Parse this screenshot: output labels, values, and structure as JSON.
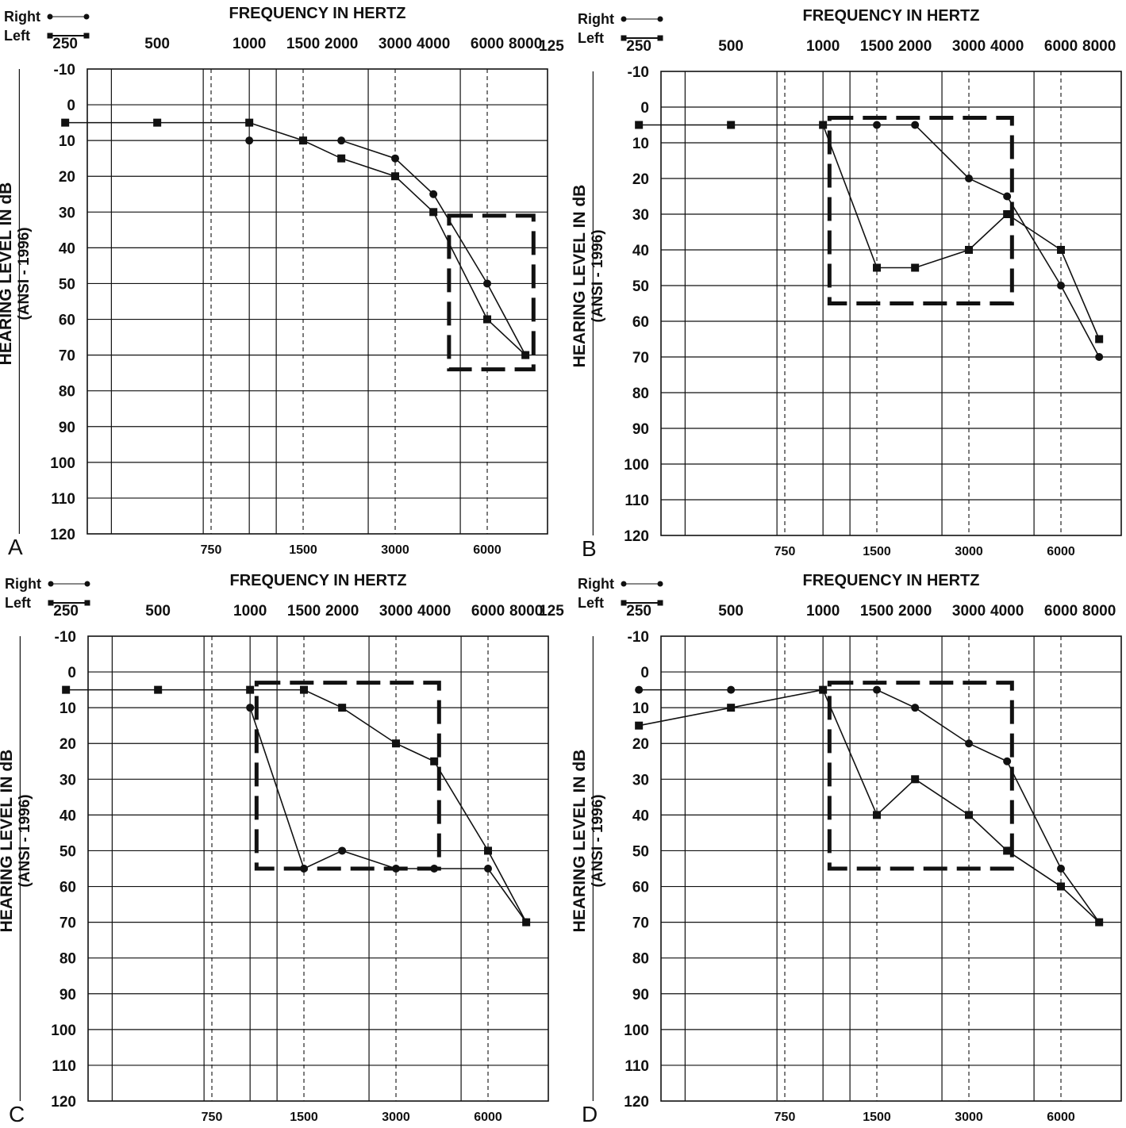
{
  "chart_data": [
    {
      "type": "line",
      "panel_label": "A",
      "title": "FREQUENCY IN HERTZ",
      "ylabel": "HEARING LEVEL IN dB",
      "ylabel_sub": "(ANSI - 1996)",
      "ylim": [
        -10,
        120
      ],
      "y_ticks": [
        "-10",
        "0",
        "10",
        "20",
        "30",
        "40",
        "50",
        "60",
        "70",
        "80",
        "90",
        "100",
        "110",
        "120"
      ],
      "x_top_ticks": [
        "125",
        "250",
        "500",
        "1000",
        "1500",
        "2000",
        "3000",
        "4000",
        "6000",
        "8000"
      ],
      "x_bottom_ticks": [
        "750",
        "1500",
        "3000",
        "6000"
      ],
      "legend": [
        {
          "name": "Right",
          "marker": "circle"
        },
        {
          "name": "Left",
          "marker": "square"
        }
      ],
      "series": [
        {
          "name": "Right",
          "marker": "circle",
          "x": [
            1000,
            1500,
            2000,
            3000,
            4000,
            6000,
            8000
          ],
          "y": [
            10,
            10,
            10,
            15,
            25,
            50,
            70
          ]
        },
        {
          "name": "Left",
          "marker": "square",
          "x": [
            250,
            500,
            1000,
            1500,
            2000,
            3000,
            4000,
            6000,
            8000
          ],
          "y": [
            5,
            5,
            5,
            10,
            15,
            20,
            30,
            60,
            70
          ]
        }
      ],
      "highlight_box": {
        "x_from": 4500,
        "x_to": 8500,
        "y_from": 31,
        "y_to": 74
      }
    },
    {
      "type": "line",
      "panel_label": "B",
      "title": "FREQUENCY IN HERTZ",
      "ylabel": "HEARING LEVEL IN dB",
      "ylabel_sub": "(ANSI - 1996)",
      "ylim": [
        -10,
        120
      ],
      "y_ticks": [
        "-10",
        "0",
        "10",
        "20",
        "30",
        "40",
        "50",
        "60",
        "70",
        "80",
        "90",
        "100",
        "110",
        "120"
      ],
      "x_top_ticks": [
        "125",
        "250",
        "500",
        "1000",
        "1500",
        "2000",
        "3000",
        "4000",
        "6000",
        "8000"
      ],
      "x_bottom_ticks": [
        "750",
        "1500",
        "3000",
        "6000"
      ],
      "legend": [
        {
          "name": "Right",
          "marker": "circle"
        },
        {
          "name": "Left",
          "marker": "square"
        }
      ],
      "series": [
        {
          "name": "Right",
          "marker": "circle",
          "x": [
            1000,
            1500,
            2000,
            3000,
            4000,
            6000,
            8000
          ],
          "y": [
            5,
            5,
            5,
            20,
            25,
            50,
            70
          ]
        },
        {
          "name": "Left",
          "marker": "square",
          "x": [
            250,
            500,
            1000,
            1500,
            2000,
            3000,
            4000,
            6000,
            8000
          ],
          "y": [
            5,
            5,
            5,
            45,
            45,
            40,
            30,
            40,
            65
          ]
        }
      ],
      "highlight_box": {
        "x_from": 1050,
        "x_to": 4150,
        "y_from": 3,
        "y_to": 55
      }
    },
    {
      "type": "line",
      "panel_label": "C",
      "title": "FREQUENCY IN HERTZ",
      "ylabel": "HEARING LEVEL IN dB",
      "ylabel_sub": "(ANSI - 1996)",
      "ylim": [
        -10,
        120
      ],
      "y_ticks": [
        "-10",
        "0",
        "10",
        "20",
        "30",
        "40",
        "50",
        "60",
        "70",
        "80",
        "90",
        "100",
        "110",
        "120"
      ],
      "x_top_ticks": [
        "125",
        "250",
        "500",
        "1000",
        "1500",
        "2000",
        "3000",
        "4000",
        "6000",
        "8000"
      ],
      "x_bottom_ticks": [
        "750",
        "1500",
        "3000",
        "6000"
      ],
      "legend": [
        {
          "name": "Right",
          "marker": "circle"
        },
        {
          "name": "Left",
          "marker": "square"
        }
      ],
      "series": [
        {
          "name": "Right",
          "marker": "circle",
          "x": [
            1000,
            1500,
            2000,
            3000,
            4000,
            6000,
            8000
          ],
          "y": [
            10,
            55,
            50,
            55,
            55,
            55,
            70
          ]
        },
        {
          "name": "Left",
          "marker": "square",
          "x": [
            250,
            500,
            1000,
            1500,
            2000,
            3000,
            4000,
            6000,
            8000
          ],
          "y": [
            5,
            5,
            5,
            5,
            10,
            20,
            25,
            50,
            70
          ]
        }
      ],
      "highlight_box": {
        "x_from": 1050,
        "x_to": 4150,
        "y_from": 3,
        "y_to": 55
      }
    },
    {
      "type": "line",
      "panel_label": "D",
      "title": "FREQUENCY IN HERTZ",
      "ylabel": "HEARING LEVEL IN dB",
      "ylabel_sub": "(ANSI - 1996)",
      "ylim": [
        -10,
        120
      ],
      "y_ticks": [
        "-10",
        "0",
        "10",
        "20",
        "30",
        "40",
        "50",
        "60",
        "70",
        "80",
        "90",
        "100",
        "110",
        "120"
      ],
      "x_top_ticks": [
        "125",
        "250",
        "500",
        "1000",
        "1500",
        "2000",
        "3000",
        "4000",
        "6000",
        "8000"
      ],
      "x_bottom_ticks": [
        "750",
        "1500",
        "3000",
        "6000"
      ],
      "legend": [
        {
          "name": "Right",
          "marker": "circle"
        },
        {
          "name": "Left",
          "marker": "square"
        }
      ],
      "series": [
        {
          "name": "Right",
          "marker": "circle",
          "x": [
            250,
            500,
            1000,
            1500,
            2000,
            3000,
            4000,
            6000,
            8000
          ],
          "y": [
            5,
            5,
            5,
            5,
            10,
            20,
            25,
            55,
            70
          ]
        },
        {
          "name": "Left",
          "marker": "square",
          "x": [
            250,
            500,
            1000,
            1500,
            2000,
            3000,
            4000,
            6000,
            8000
          ],
          "y": [
            15,
            10,
            5,
            40,
            30,
            40,
            50,
            60,
            70
          ]
        }
      ],
      "highlight_box": {
        "x_from": 1050,
        "x_to": 4150,
        "y_from": 3,
        "y_to": 55
      }
    }
  ]
}
